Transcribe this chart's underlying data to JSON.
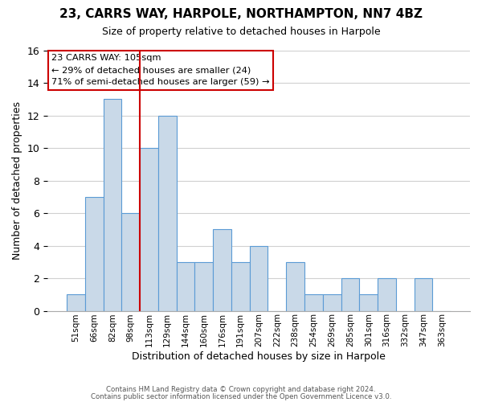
{
  "title": "23, CARRS WAY, HARPOLE, NORTHAMPTON, NN7 4BZ",
  "subtitle": "Size of property relative to detached houses in Harpole",
  "xlabel": "Distribution of detached houses by size in Harpole",
  "ylabel": "Number of detached properties",
  "bar_color": "#c9d9e8",
  "bar_edge_color": "#5b9bd5",
  "bins": [
    "51sqm",
    "66sqm",
    "82sqm",
    "98sqm",
    "113sqm",
    "129sqm",
    "144sqm",
    "160sqm",
    "176sqm",
    "191sqm",
    "207sqm",
    "222sqm",
    "238sqm",
    "254sqm",
    "269sqm",
    "285sqm",
    "301sqm",
    "316sqm",
    "332sqm",
    "347sqm",
    "363sqm"
  ],
  "values": [
    1,
    7,
    13,
    6,
    10,
    12,
    3,
    3,
    5,
    3,
    4,
    0,
    3,
    1,
    1,
    2,
    1,
    2,
    0,
    2,
    0
  ],
  "ylim": [
    0,
    16
  ],
  "yticks": [
    0,
    2,
    4,
    6,
    8,
    10,
    12,
    14,
    16
  ],
  "vline_position": 3.5,
  "annotation_text": "23 CARRS WAY: 105sqm\n← 29% of detached houses are smaller (24)\n71% of semi-detached houses are larger (59) →",
  "annotation_box_color": "#ffffff",
  "annotation_box_edge_color": "#cc0000",
  "vline_color": "#cc0000",
  "footer1": "Contains HM Land Registry data © Crown copyright and database right 2024.",
  "footer2": "Contains public sector information licensed under the Open Government Licence v3.0.",
  "background_color": "#ffffff",
  "grid_color": "#d0d0d0"
}
